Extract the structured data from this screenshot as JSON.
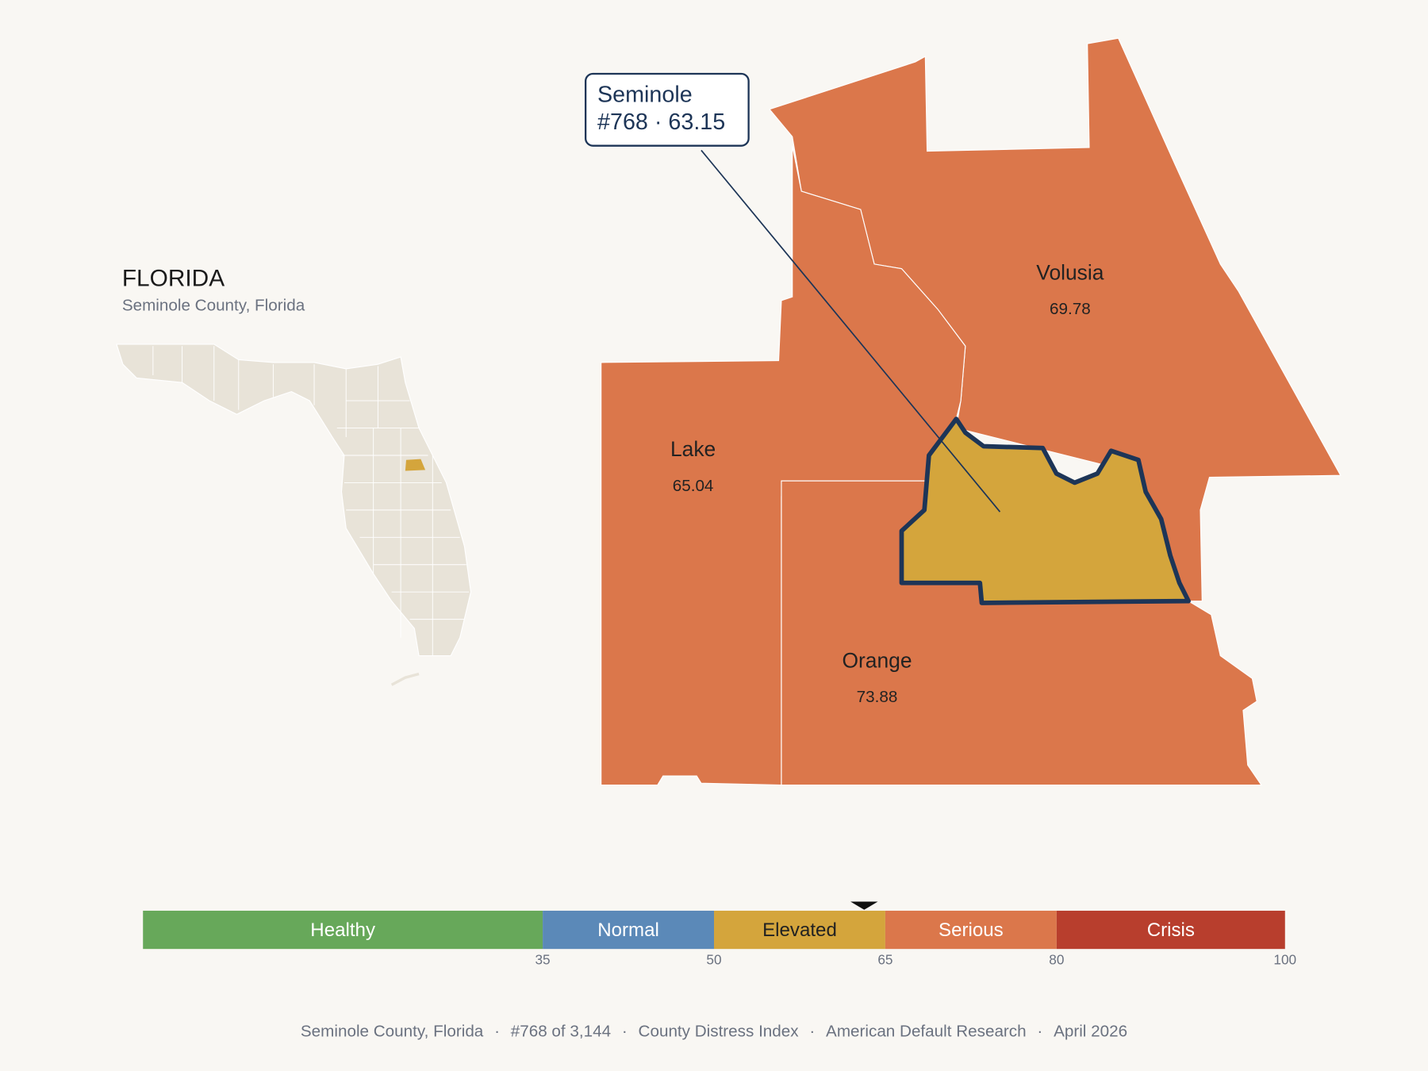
{
  "header": {
    "title": "FLORIDA",
    "subtitle": "Seminole County, Florida"
  },
  "callout": {
    "name": "Seminole",
    "rank": "#768",
    "separator": "·",
    "score": 63.15
  },
  "counties": [
    {
      "name": "Volusia",
      "value": 69.78
    },
    {
      "name": "Lake",
      "value": 65.04
    },
    {
      "name": "Orange",
      "value": 73.88
    }
  ],
  "scale": {
    "lim": [
      0,
      100
    ],
    "ticks": [
      35,
      50,
      65,
      80,
      100
    ],
    "bands": [
      {
        "label": "Healthy",
        "color": "#67a85a",
        "text_color": "#ffffff"
      },
      {
        "label": "Normal",
        "color": "#5b89b8",
        "text_color": "#ffffff"
      },
      {
        "label": "Elevated",
        "color": "#d4a53c",
        "text_color": "#222222"
      },
      {
        "label": "Serious",
        "color": "#db774b",
        "text_color": "#ffffff"
      },
      {
        "label": "Crisis",
        "color": "#b83e2d",
        "text_color": "#ffffff"
      }
    ]
  },
  "footer": {
    "separator": "·",
    "items": [
      "Seminole County, Florida",
      "#768 of 3,144",
      "County Distress Index",
      "American Default Research",
      "April 2026"
    ]
  }
}
